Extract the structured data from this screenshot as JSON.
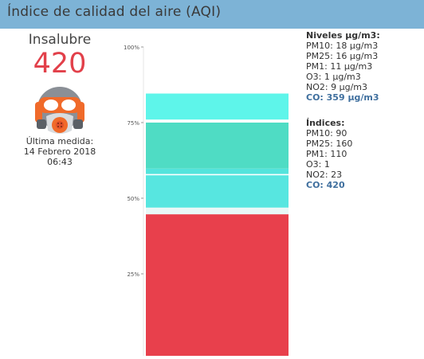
{
  "header": {
    "title": "Índice de calidad del aire (AQI)"
  },
  "left": {
    "status": "Insalubre",
    "aqi": "420",
    "last_label": "Última medida:",
    "last_date": "14 Febrero 2018",
    "last_time": "06:43",
    "icon": "gas-mask-icon"
  },
  "levels": {
    "title": "Niveles µg/m3:",
    "items": [
      "PM10: 18 µg/m3",
      "PM25: 16 µg/m3",
      "PM1: 11 µg/m3",
      "O3: 1 µg/m3",
      "NO2: 9 µg/m3"
    ],
    "co": "CO: 359 µg/m3"
  },
  "indices": {
    "title": "Índices:",
    "items": [
      "PM10: 90",
      "PM25: 160",
      "PM1: 110",
      "O3: 1",
      "NO2: 23"
    ],
    "co": "CO: 420"
  },
  "chart_data": {
    "type": "bar",
    "stacked": true,
    "y_ticks": [
      "25%",
      "50%",
      "75%",
      "100%"
    ],
    "ylim": [
      0,
      100
    ],
    "segments": [
      {
        "from": 0,
        "to": 44.7,
        "color": "#e8404c"
      },
      {
        "from": 44.7,
        "to": 46.9,
        "color": "#e9f8f7"
      },
      {
        "from": 46.9,
        "to": 57.6,
        "color": "#57e6e0"
      },
      {
        "from": 57.6,
        "to": 58.0,
        "color": "#ffffff"
      },
      {
        "from": 58.0,
        "to": 59.8,
        "color": "#53e4dc"
      },
      {
        "from": 59.8,
        "to": 75.0,
        "color": "#4fdcc4"
      },
      {
        "from": 75.0,
        "to": 76.0,
        "color": "#ffffff"
      },
      {
        "from": 76.0,
        "to": 84.6,
        "color": "#5ef5ea"
      }
    ]
  },
  "colors": {
    "header_bg": "#7db3d6",
    "aqi_red": "#e2404a",
    "co_blue": "#3f6f9e"
  }
}
